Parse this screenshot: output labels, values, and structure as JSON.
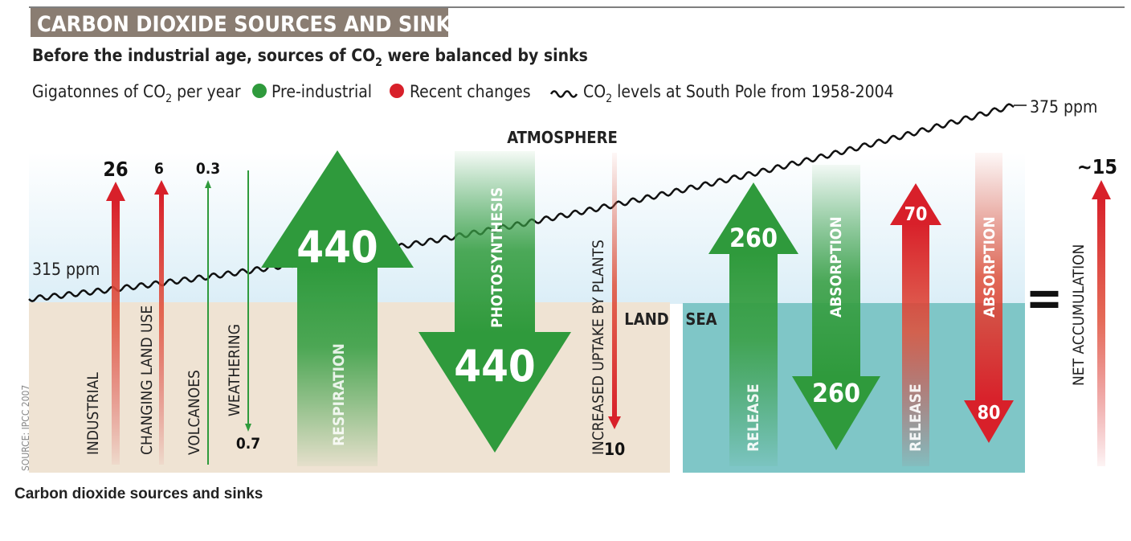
{
  "title": "CARBON DIOXIDE SOURCES AND SINKS",
  "subtitle": {
    "before": "Before the industrial age, sources of CO",
    "sub": "2",
    "after": " were balanced by sinks"
  },
  "legend": {
    "units_before": "Gigatonnes of CO",
    "units_sub": "2",
    "units_after": " per year",
    "pre_industrial": "Pre-industrial",
    "recent_changes": "Recent changes",
    "co2_levels_before": "CO",
    "co2_levels_sub": "2",
    "co2_levels_after": " levels at South Pole from 1958-2004"
  },
  "colors": {
    "pre_industrial": "#2f9a3c",
    "recent_changes": "#d8202a",
    "land": "#efe3d3",
    "sea": "#7fc6c7",
    "sky": "#e4f1f8",
    "title_bg": "#8a7d72"
  },
  "co2_curve": {
    "start_label": "315 ppm",
    "end_label": "375 ppm",
    "start_ppm": 315,
    "end_ppm": 375
  },
  "regions": {
    "atmosphere": "ATMOSPHERE",
    "land": "LAND",
    "sea": "SEA"
  },
  "flows": {
    "industrial": {
      "label": "INDUSTRIAL",
      "value": "26"
    },
    "changing_land_use": {
      "label": "CHANGING LAND USE",
      "value": "6"
    },
    "volcanoes": {
      "label": "VOLCANOES",
      "value": "0.3"
    },
    "weathering": {
      "label": "WEATHERING",
      "value": "0.7"
    },
    "respiration": {
      "label": "RESPIRATION",
      "value": "440"
    },
    "photosynthesis": {
      "label": "PHOTOSYNTHESIS",
      "value": "440"
    },
    "increased_uptake": {
      "label": "INCREASED UPTAKE BY PLANTS",
      "value": "10"
    },
    "sea_release": {
      "label": "RELEASE",
      "value": "260"
    },
    "sea_absorption": {
      "label": "ABSORPTION",
      "value": "260"
    },
    "recent_release": {
      "label": "RELEASE",
      "value": "70"
    },
    "recent_absorption": {
      "label": "ABSORPTION",
      "value": "80"
    },
    "net_accumulation": {
      "label": "NET ACCUMULATION",
      "value": "~15"
    }
  },
  "equals_sign": "=",
  "source": "SOURCE: IPCC 2007",
  "caption": "Carbon dioxide sources and sinks"
}
